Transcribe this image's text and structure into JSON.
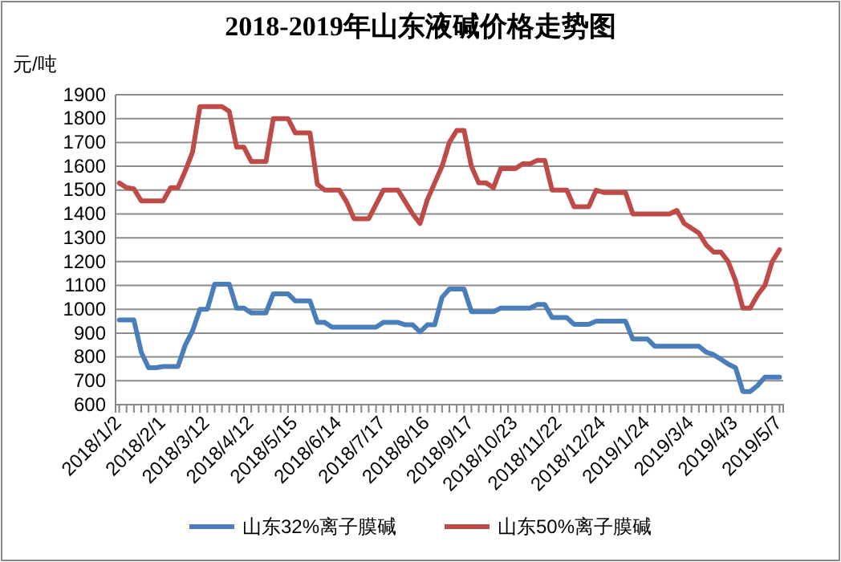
{
  "chart_data": {
    "type": "line",
    "title": "2018-2019年山东液碱价格走势图",
    "ylabel": "元/吨",
    "categories": [
      "2018/1/2",
      null,
      null,
      null,
      null,
      null,
      "2018/2/1",
      null,
      null,
      null,
      null,
      null,
      "2018/3/12",
      null,
      null,
      null,
      null,
      null,
      "2018/4/12",
      null,
      null,
      null,
      null,
      null,
      "2018/5/15",
      null,
      null,
      null,
      null,
      null,
      "2018/6/14",
      null,
      null,
      null,
      null,
      null,
      "2018/7/17",
      null,
      null,
      null,
      null,
      null,
      "2018/8/16",
      null,
      null,
      null,
      null,
      null,
      "2018/9/17",
      null,
      null,
      null,
      null,
      null,
      "2018/10/23",
      null,
      null,
      null,
      null,
      null,
      "2018/11/22",
      null,
      null,
      null,
      null,
      null,
      "2018/12/24",
      null,
      null,
      null,
      null,
      null,
      "2019/1/24",
      null,
      null,
      null,
      null,
      null,
      "2019/3/4",
      null,
      null,
      null,
      null,
      null,
      "2019/4/3",
      null,
      null,
      null,
      null,
      null,
      "2019/5/7"
    ],
    "series": [
      {
        "name": "山东32%离子膜碱",
        "color": "#4a7ebb",
        "values": [
          955,
          955,
          955,
          820,
          755,
          755,
          760,
          760,
          760,
          850,
          910,
          1000,
          1000,
          1105,
          1105,
          1105,
          1005,
          1005,
          985,
          985,
          985,
          1065,
          1065,
          1065,
          1035,
          1035,
          1035,
          945,
          945,
          925,
          925,
          925,
          925,
          925,
          925,
          925,
          945,
          945,
          945,
          935,
          935,
          905,
          935,
          935,
          1050,
          1085,
          1085,
          1085,
          990,
          990,
          990,
          990,
          1005,
          1005,
          1005,
          1005,
          1005,
          1020,
          1020,
          965,
          965,
          965,
          937,
          937,
          937,
          950,
          950,
          950,
          950,
          950,
          875,
          875,
          875,
          845,
          845,
          845,
          845,
          845,
          845,
          845,
          820,
          810,
          790,
          770,
          755,
          655,
          655,
          680,
          715,
          715,
          715
        ]
      },
      {
        "name": "山东50%离子膜碱",
        "color": "#be4b48",
        "values": [
          1530,
          1510,
          1505,
          1455,
          1455,
          1455,
          1455,
          1510,
          1510,
          1580,
          1660,
          1850,
          1850,
          1850,
          1850,
          1830,
          1680,
          1680,
          1620,
          1620,
          1620,
          1800,
          1800,
          1800,
          1740,
          1740,
          1740,
          1525,
          1500,
          1500,
          1500,
          1450,
          1380,
          1380,
          1380,
          1440,
          1500,
          1500,
          1500,
          1450,
          1400,
          1360,
          1460,
          1530,
          1600,
          1700,
          1750,
          1750,
          1600,
          1530,
          1530,
          1510,
          1590,
          1590,
          1590,
          1610,
          1610,
          1625,
          1625,
          1500,
          1500,
          1500,
          1430,
          1430,
          1430,
          1500,
          1490,
          1490,
          1490,
          1490,
          1400,
          1400,
          1400,
          1400,
          1400,
          1400,
          1415,
          1360,
          1340,
          1320,
          1270,
          1240,
          1240,
          1200,
          1120,
          1005,
          1005,
          1060,
          1100,
          1200,
          1250
        ]
      }
    ],
    "ylim": [
      600,
      1900
    ],
    "yticks": [
      600,
      700,
      800,
      900,
      1000,
      1100,
      1200,
      1300,
      1400,
      1500,
      1600,
      1700,
      1800,
      1900
    ],
    "grid": "y",
    "legend": "bottom",
    "marker": "none",
    "line_style": "solid"
  }
}
